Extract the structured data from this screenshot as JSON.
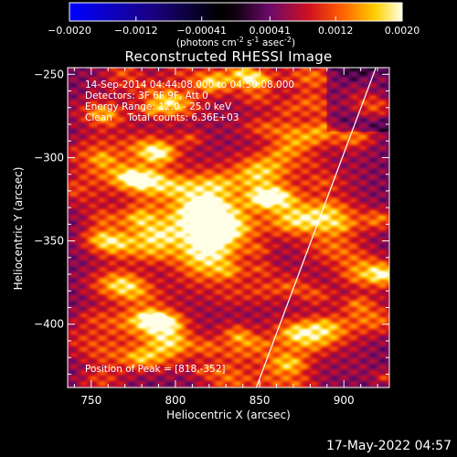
{
  "chart_data": {
    "type": "heatmap",
    "title": "Reconstructed RHESSI Image",
    "xlabel": "Heliocentric X (arcsec)",
    "ylabel": "Heliocentric Y (arcsec)",
    "xlim": [
      736,
      927
    ],
    "ylim": [
      -438,
      -246
    ],
    "x_ticks": [
      750,
      800,
      850,
      900
    ],
    "x_tick_labels": [
      "750",
      "800",
      "850",
      "900"
    ],
    "y_ticks": [
      -250,
      -300,
      -350,
      -400
    ],
    "y_tick_labels": [
      "-250",
      "-300",
      "-350",
      "-400"
    ],
    "colorbar": {
      "ticks": [
        -0.002,
        -0.0012,
        -0.00041,
        0.00041,
        0.0012,
        0.002
      ],
      "tick_labels": [
        "-0.0020",
        "-0.0012",
        "-0.00041",
        "0.00041",
        "0.0012",
        "0.0020"
      ],
      "range": [
        -0.002,
        0.002
      ],
      "units_prefix": "(photons cm",
      "units_exp1": "-2",
      "units_mid1": " s",
      "units_exp2": "-1",
      "units_mid2": " asec",
      "units_exp3": "-2",
      "units_suffix": ")"
    },
    "annotations": [
      "14-Sep-2014 04:44:08.000 to 04:50:08.000",
      "Detectors: 3F 6F 9F, Att 0",
      "Energy Range: 12.0 - 25.0 keV",
      "Clean     Total counts: 6.36E+03"
    ],
    "peak_text": "Position of Peak = [818,-352]",
    "peak": [
      818,
      -352
    ],
    "limb_line": [
      [
        848,
        -438
      ],
      [
        919,
        -246
      ]
    ],
    "grid": false,
    "colormap": "RHESSI hot (blue-black negative, red-yellow-white positive)"
  },
  "footer": {
    "date": "17-May-2022 04:57"
  }
}
